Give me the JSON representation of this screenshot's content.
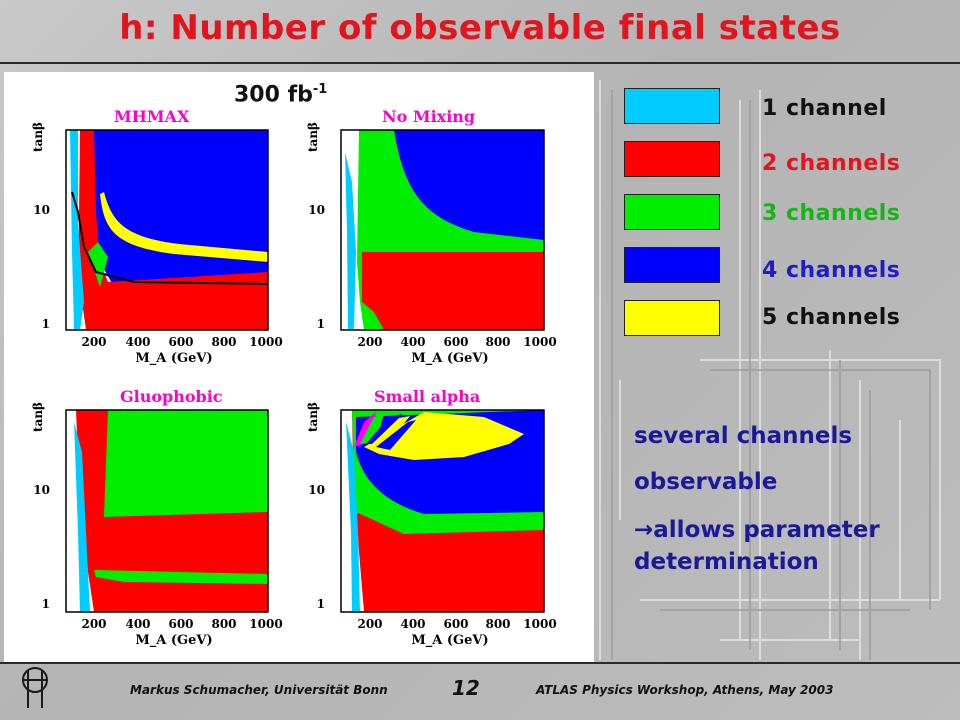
{
  "slide": {
    "title": "h: Number of observable final states",
    "luminosity_value": "300 fb",
    "luminosity_exponent": "-1",
    "legend": [
      {
        "label": "1 channel",
        "swatch_color": "#00ccff",
        "text_color": "#111111"
      },
      {
        "label": "2 channels",
        "swatch_color": "#ff0000",
        "text_color": "#e0151e"
      },
      {
        "label": "3 channels",
        "swatch_color": "#00ee00",
        "text_color": "#16b516"
      },
      {
        "label": "4 channels",
        "swatch_color": "#0000ff",
        "text_color": "#1e1ec8"
      },
      {
        "label": "5 channels",
        "swatch_color": "#ffff00",
        "text_color": "#111111"
      }
    ],
    "notes": {
      "line1": "several channels",
      "line2": "observable",
      "arrow": "→",
      "line3": "allows parameter",
      "line4": "determination"
    },
    "footer": {
      "author": "Markus Schumacher,  Universität Bonn",
      "page": "12",
      "conference": "ATLAS Physics Workshop, Athens, May 2003"
    }
  },
  "chart_data": [
    {
      "type": "heatmap",
      "title": "MHMAX",
      "xlabel": "M_A (GeV)",
      "ylabel": "tanβ",
      "x_ticks": [
        "200",
        "400",
        "600",
        "800",
        "1000"
      ],
      "y_ticks": [
        "1",
        "10"
      ],
      "y_scale": "log"
    },
    {
      "type": "heatmap",
      "title": "No Mixing",
      "xlabel": "M_A (GeV)",
      "ylabel": "tanβ",
      "x_ticks": [
        "200",
        "400",
        "600",
        "800",
        "1000"
      ],
      "y_ticks": [
        "1",
        "10"
      ],
      "y_scale": "log"
    },
    {
      "type": "heatmap",
      "title": "Gluophobic",
      "xlabel": "M_A (GeV)",
      "ylabel": "tanβ",
      "x_ticks": [
        "200",
        "400",
        "600",
        "800",
        "1000"
      ],
      "y_ticks": [
        "1",
        "10"
      ],
      "y_scale": "log"
    },
    {
      "type": "heatmap",
      "title": "Small alpha",
      "xlabel": "M_A (GeV)",
      "ylabel": "tanβ",
      "x_ticks": [
        "200",
        "400",
        "600",
        "800",
        "1000"
      ],
      "y_ticks": [
        "1",
        "10"
      ],
      "y_scale": "log"
    }
  ]
}
